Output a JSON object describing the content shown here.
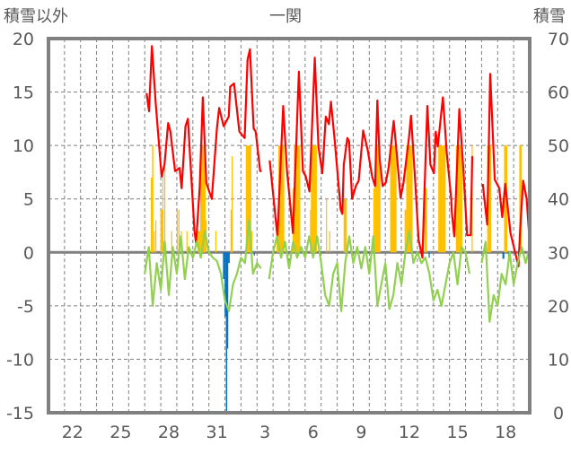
{
  "chart_data": {
    "type": "line",
    "title": "一関",
    "ylabel_left": "積雪以外",
    "ylabel_right": "積雪",
    "ylim_left": [
      -15,
      20
    ],
    "ylim_right": [
      0,
      70
    ],
    "yticks_left": [
      "20",
      "15",
      "10",
      "5",
      "0",
      "-5",
      "-10",
      "-15"
    ],
    "yticks_right": [
      "70",
      "60",
      "50",
      "40",
      "30",
      "20",
      "10",
      "0"
    ],
    "xlim": [
      0,
      30
    ],
    "xticks": [
      {
        "label": "22",
        "x": 1.5
      },
      {
        "label": "25",
        "x": 4.5
      },
      {
        "label": "28",
        "x": 7.5
      },
      {
        "label": "31",
        "x": 10.5
      },
      {
        "label": "3",
        "x": 13.5
      },
      {
        "label": "6",
        "x": 16.5
      },
      {
        "label": "9",
        "x": 19.5
      },
      {
        "label": "12",
        "x": 22.5
      },
      {
        "label": "15",
        "x": 25.5
      },
      {
        "label": "18",
        "x": 28.5
      }
    ],
    "grid": true,
    "series": [
      {
        "id": "red",
        "color": "#ff0000",
        "kind": "line",
        "axis": "left",
        "points": [
          [
            6.12,
            14.9
          ],
          [
            6.27,
            13.2
          ],
          [
            6.45,
            19.3
          ],
          [
            6.68,
            14.1
          ],
          [
            7.05,
            7.1
          ],
          [
            7.23,
            8.2
          ],
          [
            7.46,
            12.1
          ],
          [
            7.6,
            11.3
          ],
          [
            7.89,
            7.6
          ],
          [
            8.17,
            7.9
          ],
          [
            8.3,
            6.0
          ],
          [
            8.54,
            11.8
          ],
          [
            8.69,
            12.5
          ],
          [
            9.1,
            2.0
          ],
          [
            9.2,
            0.9
          ],
          [
            9.43,
            6.2
          ],
          [
            9.62,
            14.5
          ],
          [
            9.84,
            6.5
          ],
          [
            10.18,
            5.0
          ],
          [
            10.5,
            11.6
          ],
          [
            10.64,
            13.5
          ],
          [
            10.92,
            11.8
          ],
          [
            11.24,
            12.7
          ],
          [
            11.33,
            15.5
          ],
          [
            11.57,
            15.8
          ],
          [
            11.9,
            11.3
          ],
          [
            12.23,
            10.7
          ],
          [
            12.41,
            18.0
          ],
          [
            12.56,
            19.0
          ],
          [
            12.79,
            11.6
          ],
          [
            12.92,
            11.3
          ],
          [
            13.2,
            7.6
          ],
          [
            13.29,
            7.6
          ],
          null,
          [
            13.79,
            8.6
          ],
          [
            14.27,
            1.5
          ],
          [
            14.63,
            13.7
          ],
          [
            14.87,
            7.6
          ],
          [
            15.24,
            1.8
          ],
          [
            15.61,
            16.9
          ],
          [
            15.86,
            7.6
          ],
          [
            16.04,
            7.1
          ],
          [
            16.27,
            5.7
          ],
          [
            16.6,
            18.2
          ],
          [
            16.83,
            9.9
          ],
          [
            17.07,
            7.4
          ],
          [
            17.29,
            12.7
          ],
          [
            17.48,
            12.0
          ],
          [
            17.61,
            14.1
          ],
          [
            17.85,
            10.4
          ],
          [
            18.22,
            4.0
          ],
          [
            18.32,
            3.6
          ],
          [
            18.41,
            8.2
          ],
          [
            18.63,
            10.7
          ],
          [
            18.74,
            10.4
          ],
          [
            18.93,
            5.0
          ],
          [
            19.16,
            6.2
          ],
          [
            19.34,
            6.7
          ],
          [
            19.62,
            11.4
          ],
          [
            19.9,
            9.6
          ],
          [
            20.18,
            7.1
          ],
          [
            20.36,
            6.2
          ],
          [
            20.5,
            14.2
          ],
          [
            20.64,
            8.8
          ],
          [
            20.83,
            6.2
          ],
          [
            21.02,
            6.5
          ],
          [
            21.2,
            7.9
          ],
          [
            21.52,
            12.3
          ],
          [
            21.67,
            9.9
          ],
          [
            21.95,
            5.1
          ],
          [
            22.13,
            6.5
          ],
          [
            22.47,
            10.7
          ],
          [
            22.6,
            12.8
          ],
          [
            22.88,
            6.2
          ],
          [
            23.07,
            1.2
          ],
          [
            23.31,
            -0.5
          ],
          [
            23.44,
            5.7
          ],
          [
            23.62,
            13.7
          ],
          [
            23.81,
            8.2
          ],
          [
            24.03,
            7.4
          ],
          [
            24.14,
            11.3
          ],
          [
            24.27,
            9.9
          ],
          [
            24.59,
            14.5
          ],
          [
            24.83,
            9.3
          ],
          [
            25.11,
            5.0
          ],
          [
            25.15,
            3.7
          ],
          [
            25.3,
            1.5
          ],
          [
            25.61,
            13.4
          ],
          [
            25.86,
            7.9
          ],
          [
            26.1,
            1.6
          ],
          [
            26.32,
            1.6
          ],
          [
            26.42,
            9.0
          ],
          null,
          [
            27.07,
            6.4
          ],
          [
            27.35,
            2.6
          ],
          [
            27.54,
            16.7
          ],
          [
            27.82,
            6.8
          ],
          [
            28.1,
            6.0
          ],
          [
            28.29,
            3.3
          ],
          [
            28.47,
            6.4
          ],
          [
            28.8,
            1.8
          ],
          [
            29.3,
            -1.3
          ],
          [
            29.4,
            2.0
          ],
          [
            29.59,
            6.7
          ],
          [
            29.81,
            5.0
          ],
          [
            30.0,
            0.9
          ]
        ]
      },
      {
        "id": "green",
        "color": "#92d050",
        "kind": "line",
        "axis": "left",
        "points": [
          [
            6.0,
            -2
          ],
          [
            6.25,
            0.5
          ],
          [
            6.5,
            -5
          ],
          [
            6.75,
            -1
          ],
          [
            7.0,
            -3.5
          ],
          [
            7.25,
            1
          ],
          [
            7.5,
            -4
          ],
          [
            7.75,
            0.5
          ],
          [
            8.0,
            -2
          ],
          [
            8.25,
            1.5
          ],
          [
            8.5,
            -2.5
          ],
          [
            8.75,
            0.5
          ],
          [
            9.0,
            -0.5
          ],
          [
            9.25,
            1
          ],
          [
            9.5,
            -0.5
          ],
          [
            9.75,
            2
          ],
          [
            10.0,
            0
          ],
          [
            10.25,
            -0.5
          ],
          [
            10.5,
            -0.8
          ],
          [
            10.75,
            -2
          ],
          [
            11.0,
            -4.5
          ],
          [
            11.25,
            -5.5
          ],
          [
            11.5,
            -3
          ],
          [
            11.75,
            -2
          ],
          [
            12.0,
            -0.5
          ],
          [
            12.25,
            -1
          ],
          [
            12.5,
            3
          ],
          [
            12.75,
            -2
          ],
          [
            13.0,
            -1
          ],
          [
            13.25,
            -1.5
          ],
          null,
          [
            13.75,
            -2.5
          ],
          [
            14.0,
            0
          ],
          [
            14.25,
            1.5
          ],
          [
            14.5,
            -0.5
          ],
          [
            14.75,
            1
          ],
          [
            15.0,
            -1.5
          ],
          [
            15.25,
            1
          ],
          [
            15.5,
            -0.5
          ],
          [
            15.75,
            0.5
          ],
          [
            16.0,
            -0.5
          ],
          [
            16.25,
            1.5
          ],
          [
            16.5,
            -0.5
          ],
          [
            16.75,
            1.5
          ],
          [
            17.0,
            -1
          ],
          [
            17.25,
            -4
          ],
          [
            17.5,
            -5
          ],
          [
            17.75,
            -2
          ],
          [
            18.0,
            -1
          ],
          [
            18.25,
            -5.5
          ],
          [
            18.5,
            -1
          ],
          [
            18.75,
            1.5
          ],
          [
            19.0,
            -1
          ],
          [
            19.25,
            0.5
          ],
          [
            19.5,
            -1.5
          ],
          [
            19.75,
            0.5
          ],
          [
            20.0,
            -2
          ],
          [
            20.25,
            1.5
          ],
          [
            20.5,
            -5
          ],
          [
            20.75,
            -3
          ],
          [
            21.0,
            -1
          ],
          [
            21.25,
            -5.3
          ],
          [
            21.5,
            -4
          ],
          [
            21.75,
            -1
          ],
          [
            22.0,
            -3
          ],
          [
            22.25,
            0
          ],
          [
            22.5,
            2
          ],
          [
            22.75,
            -1
          ],
          [
            23.0,
            0
          ],
          [
            23.25,
            -1
          ],
          [
            23.5,
            -0.5
          ],
          [
            23.75,
            -2
          ],
          [
            24.0,
            -4.5
          ],
          [
            24.25,
            -3.5
          ],
          [
            24.5,
            -5
          ],
          [
            24.75,
            -3
          ],
          [
            25.0,
            -1
          ],
          [
            25.25,
            0
          ],
          [
            25.5,
            -3
          ],
          [
            25.75,
            0.5
          ],
          [
            26.0,
            0
          ],
          [
            26.25,
            -2
          ],
          null,
          [
            27.0,
            -1
          ],
          [
            27.25,
            1
          ],
          [
            27.5,
            -6.5
          ],
          [
            27.75,
            -4
          ],
          [
            28.0,
            -5
          ],
          [
            28.25,
            -2
          ],
          [
            28.5,
            -3
          ],
          [
            28.75,
            0
          ],
          [
            29.0,
            -3
          ],
          [
            29.25,
            -1
          ],
          [
            29.5,
            0.5
          ],
          [
            29.75,
            -1
          ],
          [
            30.0,
            0.5
          ]
        ]
      },
      {
        "id": "orange",
        "color": "#ffc000",
        "kind": "bar",
        "axis": "left",
        "bars": [
          [
            6.38,
            0.08,
            7
          ],
          [
            6.46,
            0.08,
            10
          ],
          [
            6.56,
            0.04,
            2
          ],
          [
            6.66,
            0.04,
            3
          ],
          [
            6.98,
            0.2,
            4
          ],
          [
            7.1,
            0.05,
            8
          ],
          [
            7.22,
            0.04,
            8
          ],
          [
            7.65,
            0.04,
            2
          ],
          [
            8.0,
            0.04,
            4
          ],
          [
            8.1,
            0.04,
            4
          ],
          [
            8.25,
            0.04,
            2
          ],
          [
            8.6,
            0.05,
            2
          ],
          [
            9.3,
            0.16,
            2
          ],
          [
            9.46,
            0.34,
            10
          ],
          [
            9.8,
            0.06,
            3
          ],
          [
            10.4,
            0.05,
            2
          ],
          [
            11.35,
            0.08,
            4
          ],
          [
            11.42,
            0.04,
            9
          ],
          [
            12.3,
            0.35,
            10
          ],
          [
            12.65,
            0.06,
            2
          ],
          [
            14.22,
            0.11,
            2
          ],
          [
            14.33,
            0.37,
            10
          ],
          [
            15.22,
            0.08,
            6
          ],
          [
            15.3,
            0.4,
            10
          ],
          [
            16.3,
            0.06,
            4
          ],
          [
            16.36,
            0.37,
            10
          ],
          [
            17.3,
            0.04,
            5
          ],
          [
            17.5,
            0.04,
            2
          ],
          [
            18.4,
            0.2,
            5
          ],
          [
            20.25,
            0.1,
            6
          ],
          [
            20.35,
            0.35,
            10
          ],
          [
            21.3,
            0.4,
            10
          ],
          [
            22.2,
            0.1,
            4
          ],
          [
            22.3,
            0.4,
            10
          ],
          [
            23.43,
            0.17,
            6
          ],
          [
            24.3,
            0.46,
            10
          ],
          [
            25.4,
            0.4,
            10
          ],
          [
            26.38,
            0.06,
            10
          ],
          [
            27.35,
            0.25,
            10
          ],
          [
            28.4,
            0.2,
            10
          ],
          [
            29.35,
            0.15,
            10
          ]
        ]
      },
      {
        "id": "blue",
        "color": "#0070c0",
        "kind": "bar",
        "axis": "left",
        "bars": [
          [
            10.88,
            0.1,
            -2.5
          ],
          [
            10.98,
            0.08,
            -6
          ],
          [
            11.06,
            0.08,
            -15
          ],
          [
            11.14,
            0.06,
            -9
          ],
          [
            11.2,
            0.1,
            -1
          ],
          [
            12.8,
            0.05,
            -0.3
          ],
          [
            23.7,
            0.06,
            -0.5
          ],
          [
            28.3,
            0.12,
            -0.6
          ],
          [
            28.65,
            0.06,
            -0.5
          ]
        ]
      },
      {
        "id": "purple",
        "color": "#7030a0",
        "kind": "line",
        "axis": "right",
        "points": [
          [
            10.4,
            0
          ],
          [
            13.3,
            0
          ],
          null,
          [
            13.75,
            0
          ],
          [
            26.5,
            0
          ],
          null,
          [
            26.9,
            0
          ],
          [
            30,
            0
          ]
        ]
      }
    ]
  }
}
